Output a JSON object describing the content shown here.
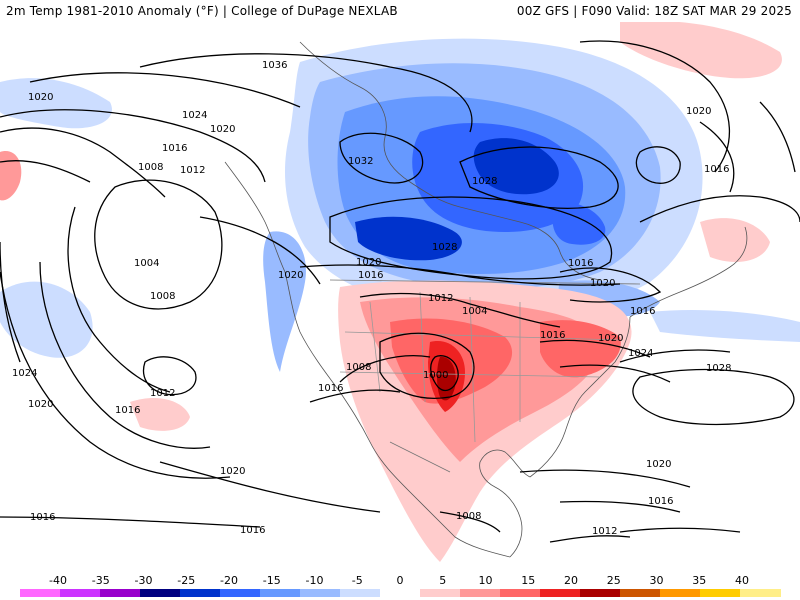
{
  "header": {
    "left_title": "2m Temp 1981-2010 Anomaly (°F) | College of DuPage NEXLAB",
    "right_title": "00Z GFS | F090 Valid: 18Z SAT MAR 29 2025"
  },
  "legend": {
    "ticks": [
      "-40",
      "-35",
      "-30",
      "-25",
      "-20",
      "-15",
      "-10",
      "-5",
      "0",
      "5",
      "10",
      "15",
      "20",
      "25",
      "30",
      "35",
      "40"
    ],
    "colors": [
      "#ff66ff",
      "#cc33ff",
      "#9900cc",
      "#000080",
      "#0033cc",
      "#3366ff",
      "#6699ff",
      "#99bbff",
      "#ccddff",
      "#ffffff",
      "#ffcccc",
      "#ff9999",
      "#ff6666",
      "#ee2222",
      "#aa0000",
      "#cc5500",
      "#ff9900",
      "#ffcc00",
      "#ffee88"
    ]
  },
  "isobars": [
    {
      "label": "1036"
    },
    {
      "label": "1032"
    },
    {
      "label": "1028"
    },
    {
      "label": "1028"
    },
    {
      "label": "1024"
    },
    {
      "label": "1020"
    },
    {
      "label": "1020"
    },
    {
      "label": "1016"
    },
    {
      "label": "1012"
    },
    {
      "label": "1008"
    },
    {
      "label": "1004"
    },
    {
      "label": "1008"
    },
    {
      "label": "1012"
    },
    {
      "label": "1016"
    },
    {
      "label": "1020"
    },
    {
      "label": "1024"
    },
    {
      "label": "1020"
    },
    {
      "label": "1016"
    },
    {
      "label": "1020"
    },
    {
      "label": "1016"
    },
    {
      "label": "1020"
    },
    {
      "label": "1016"
    },
    {
      "label": "1012"
    },
    {
      "label": "1004"
    },
    {
      "label": "1000"
    },
    {
      "label": "1008"
    },
    {
      "label": "1016"
    },
    {
      "label": "1020"
    },
    {
      "label": "1024"
    },
    {
      "label": "1028"
    },
    {
      "label": "1020"
    },
    {
      "label": "1016"
    },
    {
      "label": "1020"
    },
    {
      "label": "1016"
    },
    {
      "label": "1008"
    },
    {
      "label": "1012"
    },
    {
      "label": "1016"
    },
    {
      "label": "1020"
    },
    {
      "label": "1016"
    },
    {
      "label": "1024"
    },
    {
      "label": "1016"
    }
  ]
}
